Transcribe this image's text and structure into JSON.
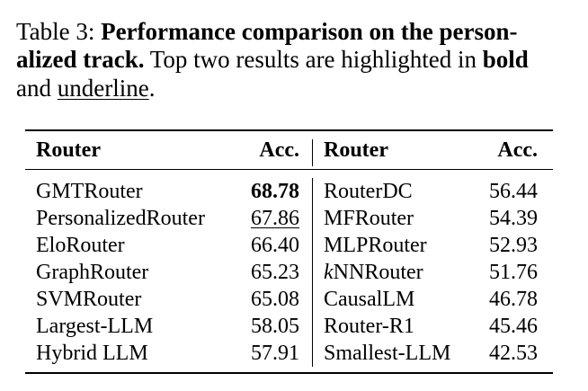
{
  "caption": {
    "lines": [
      [
        {
          "text": "Table 3: ",
          "style": "normal"
        },
        {
          "text": "Performance comparison on the person-",
          "style": "bold"
        }
      ],
      [
        {
          "text": "alized track.",
          "style": "bold"
        },
        {
          "text": " Top two results are highlighted in ",
          "style": "normal"
        },
        {
          "text": "bold",
          "style": "bold"
        }
      ],
      [
        {
          "text": "and ",
          "style": "normal"
        },
        {
          "text": "underline",
          "style": "underline"
        },
        {
          "text": ".",
          "style": "normal"
        }
      ]
    ]
  },
  "table": {
    "header": [
      "Router",
      "Acc.",
      "Router",
      "Acc."
    ],
    "rows": [
      [
        [
          {
            "text": "GMTRouter",
            "style": "normal"
          }
        ],
        [
          {
            "text": "68.78",
            "style": "bold"
          }
        ],
        [
          {
            "text": "RouterDC",
            "style": "normal"
          }
        ],
        [
          {
            "text": "56.44",
            "style": "normal"
          }
        ]
      ],
      [
        [
          {
            "text": "PersonalizedRouter",
            "style": "normal"
          }
        ],
        [
          {
            "text": "67.86",
            "style": "underline"
          }
        ],
        [
          {
            "text": "MFRouter",
            "style": "normal"
          }
        ],
        [
          {
            "text": "54.39",
            "style": "normal"
          }
        ]
      ],
      [
        [
          {
            "text": "EloRouter",
            "style": "normal"
          }
        ],
        [
          {
            "text": "66.40",
            "style": "normal"
          }
        ],
        [
          {
            "text": "MLPRouter",
            "style": "normal"
          }
        ],
        [
          {
            "text": "52.93",
            "style": "normal"
          }
        ]
      ],
      [
        [
          {
            "text": "GraphRouter",
            "style": "normal"
          }
        ],
        [
          {
            "text": "65.23",
            "style": "normal"
          }
        ],
        [
          {
            "text": "k",
            "style": "italic"
          },
          {
            "text": "NNRouter",
            "style": "normal"
          }
        ],
        [
          {
            "text": "51.76",
            "style": "normal"
          }
        ]
      ],
      [
        [
          {
            "text": "SVMRouter",
            "style": "normal"
          }
        ],
        [
          {
            "text": "65.08",
            "style": "normal"
          }
        ],
        [
          {
            "text": "CausalLM",
            "style": "normal"
          }
        ],
        [
          {
            "text": "46.78",
            "style": "normal"
          }
        ]
      ],
      [
        [
          {
            "text": "Largest-LLM",
            "style": "normal"
          }
        ],
        [
          {
            "text": "58.05",
            "style": "normal"
          }
        ],
        [
          {
            "text": "Router-R1",
            "style": "normal"
          }
        ],
        [
          {
            "text": "45.46",
            "style": "normal"
          }
        ]
      ],
      [
        [
          {
            "text": "Hybrid LLM",
            "style": "normal"
          }
        ],
        [
          {
            "text": "57.91",
            "style": "normal"
          }
        ],
        [
          {
            "text": "Smallest-LLM",
            "style": "normal"
          }
        ],
        [
          {
            "text": "42.53",
            "style": "normal"
          }
        ]
      ]
    ]
  }
}
